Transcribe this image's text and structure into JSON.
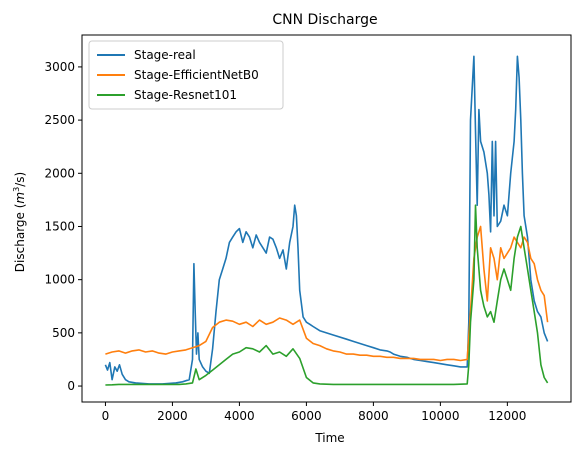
{
  "chart_data": {
    "type": "line",
    "title": "CNN Discharge",
    "xlabel": "Time",
    "ylabel_main": "Discharge (",
    "ylabel_unit_base": "m",
    "ylabel_unit_exp": "3",
    "ylabel_unit_tail": "/s)",
    "xlim": [
      -700,
      13900
    ],
    "ylim": [
      -150,
      3300
    ],
    "xticks": [
      0,
      2000,
      4000,
      6000,
      8000,
      10000,
      12000
    ],
    "yticks": [
      0,
      500,
      1000,
      1500,
      2000,
      2500,
      3000
    ],
    "grid": false,
    "legend_position": "top-left",
    "series": [
      {
        "name": "Stage-real",
        "color": "#1f77b4",
        "x": [
          0,
          60,
          130,
          200,
          280,
          350,
          420,
          500,
          600,
          700,
          900,
          1100,
          1300,
          1500,
          1700,
          1900,
          2100,
          2300,
          2500,
          2600,
          2640,
          2680,
          2720,
          2760,
          2800,
          2900,
          3000,
          3100,
          3200,
          3300,
          3400,
          3500,
          3600,
          3700,
          3800,
          3900,
          4000,
          4100,
          4200,
          4300,
          4400,
          4500,
          4600,
          4700,
          4800,
          4900,
          5000,
          5100,
          5200,
          5300,
          5400,
          5500,
          5600,
          5650,
          5700,
          5750,
          5800,
          5900,
          6000,
          6100,
          6200,
          6400,
          6800,
          7200,
          7400,
          7600,
          7800,
          8000,
          8200,
          8400,
          8500,
          8600,
          8800,
          9000,
          9100,
          9200,
          9400,
          9600,
          9800,
          10000,
          10200,
          10400,
          10600,
          10800,
          10850,
          10900,
          10950,
          11000,
          11050,
          11100,
          11150,
          11200,
          11300,
          11400,
          11450,
          11500,
          11550,
          11600,
          11650,
          11700,
          11800,
          11900,
          12000,
          12100,
          12200,
          12250,
          12300,
          12350,
          12400,
          12450,
          12500,
          12600,
          12700,
          12800,
          12900,
          13000,
          13100,
          13200
        ],
        "values": [
          200,
          150,
          220,
          60,
          180,
          140,
          200,
          110,
          60,
          40,
          30,
          25,
          20,
          20,
          20,
          25,
          30,
          40,
          60,
          250,
          1150,
          700,
          300,
          500,
          250,
          180,
          140,
          120,
          350,
          700,
          1000,
          1100,
          1200,
          1350,
          1400,
          1450,
          1480,
          1350,
          1450,
          1400,
          1300,
          1420,
          1350,
          1300,
          1250,
          1400,
          1380,
          1300,
          1200,
          1280,
          1100,
          1350,
          1500,
          1700,
          1600,
          1300,
          900,
          650,
          600,
          580,
          560,
          520,
          480,
          440,
          420,
          400,
          380,
          360,
          340,
          330,
          320,
          300,
          280,
          270,
          260,
          250,
          240,
          230,
          220,
          210,
          200,
          190,
          180,
          180,
          600,
          2500,
          2800,
          3100,
          2400,
          1700,
          2600,
          2300,
          2200,
          2000,
          1800,
          1450,
          2300,
          1600,
          2300,
          1500,
          1550,
          1700,
          1600,
          2000,
          2300,
          2600,
          3100,
          2900,
          2500,
          2000,
          1600,
          1400,
          1000,
          800,
          700,
          650,
          500,
          420
        ]
      },
      {
        "name": "Stage-EfficientNetB0",
        "color": "#ff7f0e",
        "x": [
          0,
          200,
          400,
          600,
          800,
          1000,
          1200,
          1400,
          1600,
          1800,
          2000,
          2200,
          2400,
          2600,
          2800,
          3000,
          3200,
          3400,
          3600,
          3800,
          4000,
          4200,
          4400,
          4600,
          4800,
          5000,
          5200,
          5400,
          5600,
          5800,
          6000,
          6200,
          6400,
          6600,
          6800,
          7000,
          7200,
          7400,
          7600,
          7800,
          8000,
          8200,
          8400,
          8600,
          8800,
          9000,
          9200,
          9400,
          9600,
          9800,
          10000,
          10200,
          10400,
          10600,
          10800,
          10900,
          11000,
          11100,
          11200,
          11300,
          11400,
          11500,
          11600,
          11700,
          11800,
          11900,
          12000,
          12100,
          12200,
          12300,
          12400,
          12500,
          12600,
          12700,
          12800,
          12900,
          13000,
          13100,
          13200
        ],
        "values": [
          300,
          320,
          330,
          310,
          330,
          340,
          320,
          330,
          310,
          300,
          320,
          330,
          340,
          360,
          380,
          420,
          550,
          600,
          620,
          610,
          580,
          600,
          560,
          620,
          580,
          600,
          640,
          620,
          580,
          620,
          450,
          400,
          380,
          350,
          330,
          320,
          300,
          300,
          290,
          290,
          280,
          280,
          270,
          270,
          260,
          260,
          260,
          250,
          250,
          250,
          240,
          250,
          250,
          240,
          250,
          700,
          1200,
          1400,
          1500,
          1100,
          800,
          1300,
          1200,
          1000,
          1300,
          1200,
          1250,
          1300,
          1400,
          1350,
          1300,
          1400,
          1350,
          1200,
          1150,
          1000,
          900,
          850,
          600
        ]
      },
      {
        "name": "Stage-Resnet101",
        "color": "#2ca02c",
        "x": [
          0,
          200,
          400,
          600,
          800,
          1000,
          1200,
          1400,
          1600,
          1800,
          2000,
          2200,
          2400,
          2600,
          2700,
          2800,
          3000,
          3200,
          3400,
          3600,
          3800,
          4000,
          4200,
          4400,
          4600,
          4800,
          5000,
          5200,
          5400,
          5600,
          5800,
          6000,
          6200,
          6400,
          6800,
          7200,
          7600,
          8000,
          8400,
          8800,
          9200,
          9600,
          10000,
          10400,
          10800,
          10850,
          10900,
          11000,
          11050,
          11100,
          11200,
          11300,
          11400,
          11500,
          11600,
          11700,
          11800,
          11900,
          12000,
          12100,
          12200,
          12300,
          12400,
          12500,
          12600,
          12700,
          12800,
          12900,
          13000,
          13100,
          13200
        ],
        "values": [
          10,
          12,
          15,
          15,
          15,
          15,
          15,
          15,
          15,
          15,
          15,
          15,
          20,
          30,
          160,
          60,
          100,
          150,
          200,
          250,
          300,
          320,
          360,
          350,
          320,
          380,
          300,
          320,
          280,
          350,
          260,
          80,
          30,
          20,
          15,
          15,
          15,
          15,
          15,
          15,
          15,
          15,
          15,
          15,
          20,
          200,
          600,
          1000,
          1700,
          1300,
          900,
          750,
          650,
          700,
          600,
          800,
          1000,
          1100,
          1000,
          900,
          1200,
          1400,
          1500,
          1300,
          1100,
          900,
          700,
          500,
          200,
          80,
          30
        ]
      }
    ]
  }
}
